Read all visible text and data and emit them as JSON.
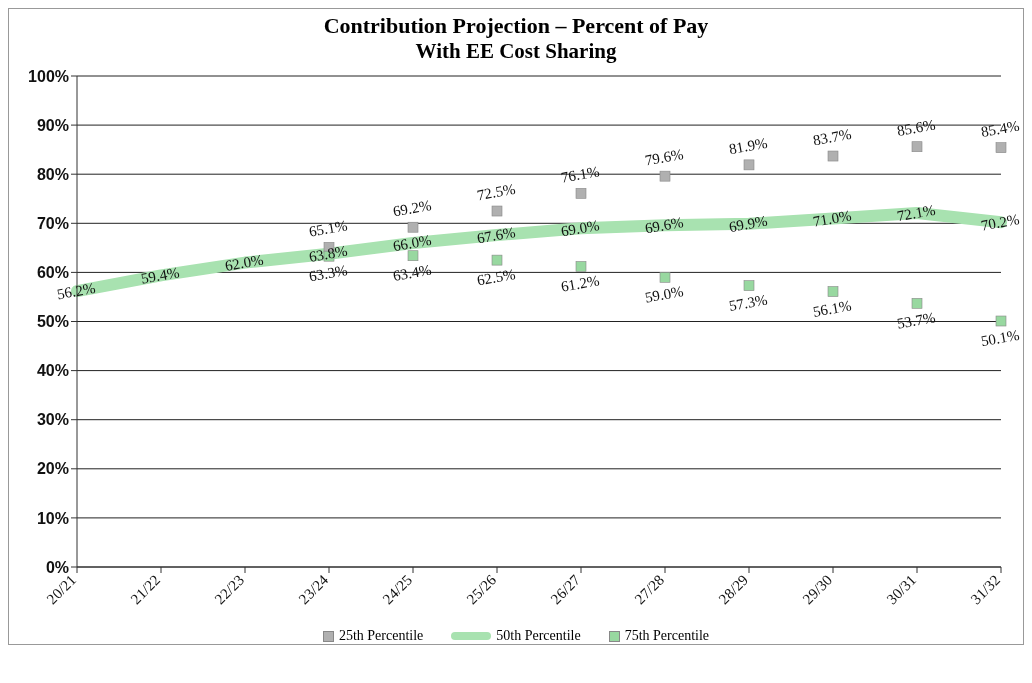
{
  "chart_data": {
    "type": "line",
    "title": "Contribution Projection – Percent of Pay",
    "subtitle": "With EE Cost Sharing",
    "categories": [
      "20/21",
      "21/22",
      "22/23",
      "23/24",
      "24/25",
      "25/26",
      "26/27",
      "27/28",
      "28/29",
      "29/30",
      "30/31",
      "31/32"
    ],
    "series": [
      {
        "name": "25th Percentile",
        "type": "scatter",
        "marker": "square",
        "color": "#b0b0b0",
        "values": [
          null,
          null,
          null,
          65.1,
          69.2,
          72.5,
          76.1,
          79.6,
          81.9,
          83.7,
          85.6,
          85.4
        ],
        "value_labels": [
          null,
          null,
          null,
          "65.1%",
          "69.2%",
          "72.5%",
          "76.1%",
          "79.6%",
          "81.9%",
          "83.7%",
          "85.6%",
          "85.4%"
        ]
      },
      {
        "name": "50th Percentile",
        "type": "line",
        "marker": "none",
        "color": "#a8e2b0",
        "values": [
          56.2,
          59.4,
          62.0,
          63.8,
          66.0,
          67.6,
          69.0,
          69.6,
          69.9,
          71.0,
          72.1,
          70.2
        ],
        "value_labels": [
          "56.2%",
          "59.4%",
          "62.0%",
          "63.8%",
          "66.0%",
          "67.6%",
          "69.0%",
          "69.6%",
          "69.9%",
          "71.0%",
          "72.1%",
          "70.2%"
        ]
      },
      {
        "name": "75th Percentile",
        "type": "scatter",
        "marker": "square",
        "color": "#98d8a0",
        "values": [
          null,
          null,
          null,
          63.3,
          63.4,
          62.5,
          61.2,
          59.0,
          57.3,
          56.1,
          53.7,
          50.1
        ],
        "value_labels": [
          null,
          null,
          null,
          "63.3%",
          "63.4%",
          "62.5%",
          "61.2%",
          "59.0%",
          "57.3%",
          "56.1%",
          "53.7%",
          "50.1%"
        ]
      }
    ],
    "ylim": [
      0,
      100
    ],
    "yticks": [
      {
        "value": 0,
        "label": "0%"
      },
      {
        "value": 10,
        "label": "10%"
      },
      {
        "value": 20,
        "label": "20%"
      },
      {
        "value": 30,
        "label": "30%"
      },
      {
        "value": 40,
        "label": "40%"
      },
      {
        "value": 50,
        "label": "50%"
      },
      {
        "value": 60,
        "label": "60%"
      },
      {
        "value": 70,
        "label": "70%"
      },
      {
        "value": 80,
        "label": "80%"
      },
      {
        "value": 90,
        "label": "90%"
      },
      {
        "value": 100,
        "label": "100%"
      }
    ],
    "grid": "y",
    "legend": "bottom"
  }
}
